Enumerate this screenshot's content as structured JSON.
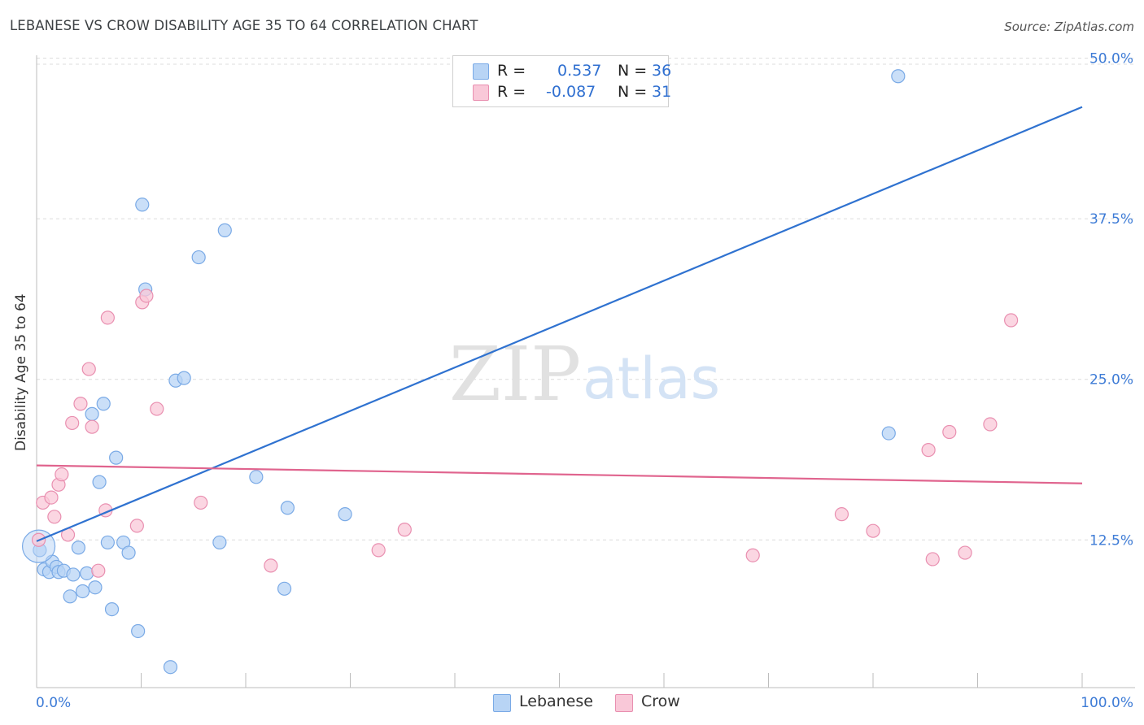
{
  "title": "LEBANESE VS CROW DISABILITY AGE 35 TO 64 CORRELATION CHART",
  "source": "Source: ZipAtlas.com",
  "watermark": {
    "zip": "ZIP",
    "atlas": "atlas"
  },
  "legend": {
    "rows": [
      {
        "r_label": "R =",
        "r_value": "0.537",
        "n_label": "N =",
        "n_value": "36",
        "color": "#b8d4f5",
        "border": "#7aaae6"
      },
      {
        "r_label": "R =",
        "r_value": "-0.087",
        "n_label": "N =",
        "n_value": "31",
        "color": "#f9c8d8",
        "border": "#e98fb0"
      }
    ]
  },
  "bottom_legend": {
    "items": [
      {
        "label": "Lebanese",
        "color": "#b8d4f5",
        "border": "#7aaae6"
      },
      {
        "label": "Crow",
        "color": "#f9c8d8",
        "border": "#e98fb0"
      }
    ]
  },
  "axes": {
    "y_label": "Disability Age 35 to 64",
    "x_min_label": "0.0%",
    "x_max_label": "100.0%",
    "y_ticks": [
      "12.5%",
      "25.0%",
      "37.5%",
      "50.0%"
    ]
  },
  "chart_data": {
    "type": "scatter",
    "xlabel": "",
    "ylabel": "Disability Age 35 to 64",
    "xlim": [
      0,
      100
    ],
    "ylim": [
      1.0,
      52.0
    ],
    "y_ticks": [
      12.5,
      25.0,
      37.5,
      50.0
    ],
    "grid": true,
    "series": [
      {
        "name": "Lebanese",
        "color": "#7aaae6",
        "fill": "#b8d4f5",
        "line_color": "#2f72d0",
        "trend": {
          "x": [
            0,
            100
          ],
          "y": [
            12.4,
            46.2
          ]
        },
        "points": [
          [
            0.3,
            11.7
          ],
          [
            0.7,
            10.2
          ],
          [
            1.2,
            10.0
          ],
          [
            1.5,
            10.8
          ],
          [
            1.9,
            10.4
          ],
          [
            2.1,
            10.0
          ],
          [
            2.6,
            10.1
          ],
          [
            3.2,
            8.1
          ],
          [
            3.5,
            9.8
          ],
          [
            4.0,
            11.9
          ],
          [
            4.4,
            8.5
          ],
          [
            4.8,
            9.9
          ],
          [
            5.3,
            22.3
          ],
          [
            5.6,
            8.8
          ],
          [
            6.0,
            17.0
          ],
          [
            6.4,
            23.1
          ],
          [
            6.8,
            12.3
          ],
          [
            7.2,
            7.1
          ],
          [
            7.6,
            18.9
          ],
          [
            8.3,
            12.3
          ],
          [
            8.8,
            11.5
          ],
          [
            9.7,
            5.4
          ],
          [
            10.1,
            38.6
          ],
          [
            10.4,
            32.0
          ],
          [
            12.8,
            2.6
          ],
          [
            13.3,
            24.9
          ],
          [
            14.1,
            25.1
          ],
          [
            15.5,
            34.5
          ],
          [
            17.5,
            12.3
          ],
          [
            18.0,
            36.6
          ],
          [
            21.0,
            17.4
          ],
          [
            23.7,
            8.7
          ],
          [
            24.0,
            15.0
          ],
          [
            29.5,
            14.5
          ],
          [
            81.5,
            20.8
          ],
          [
            82.4,
            48.6
          ]
        ]
      },
      {
        "name": "Crow",
        "color": "#e98fb0",
        "fill": "#f9c8d8",
        "line_color": "#e0648e",
        "trend": {
          "x": [
            0,
            100
          ],
          "y": [
            18.3,
            16.9
          ]
        },
        "points": [
          [
            0.2,
            12.5
          ],
          [
            0.6,
            15.4
          ],
          [
            1.4,
            15.8
          ],
          [
            1.7,
            14.3
          ],
          [
            2.1,
            16.8
          ],
          [
            2.4,
            17.6
          ],
          [
            3.0,
            12.9
          ],
          [
            3.4,
            21.6
          ],
          [
            4.2,
            23.1
          ],
          [
            5.0,
            25.8
          ],
          [
            5.3,
            21.3
          ],
          [
            5.9,
            10.1
          ],
          [
            6.6,
            14.8
          ],
          [
            6.8,
            29.8
          ],
          [
            9.6,
            13.6
          ],
          [
            10.1,
            31.0
          ],
          [
            10.5,
            31.5
          ],
          [
            11.5,
            22.7
          ],
          [
            15.7,
            15.4
          ],
          [
            22.4,
            10.5
          ],
          [
            32.7,
            11.7
          ],
          [
            35.2,
            13.3
          ],
          [
            68.5,
            11.3
          ],
          [
            77.0,
            14.5
          ],
          [
            80.0,
            13.2
          ],
          [
            85.3,
            19.5
          ],
          [
            85.7,
            11.0
          ],
          [
            87.3,
            20.9
          ],
          [
            88.8,
            11.5
          ],
          [
            91.2,
            21.5
          ],
          [
            93.2,
            29.6
          ]
        ]
      }
    ]
  }
}
